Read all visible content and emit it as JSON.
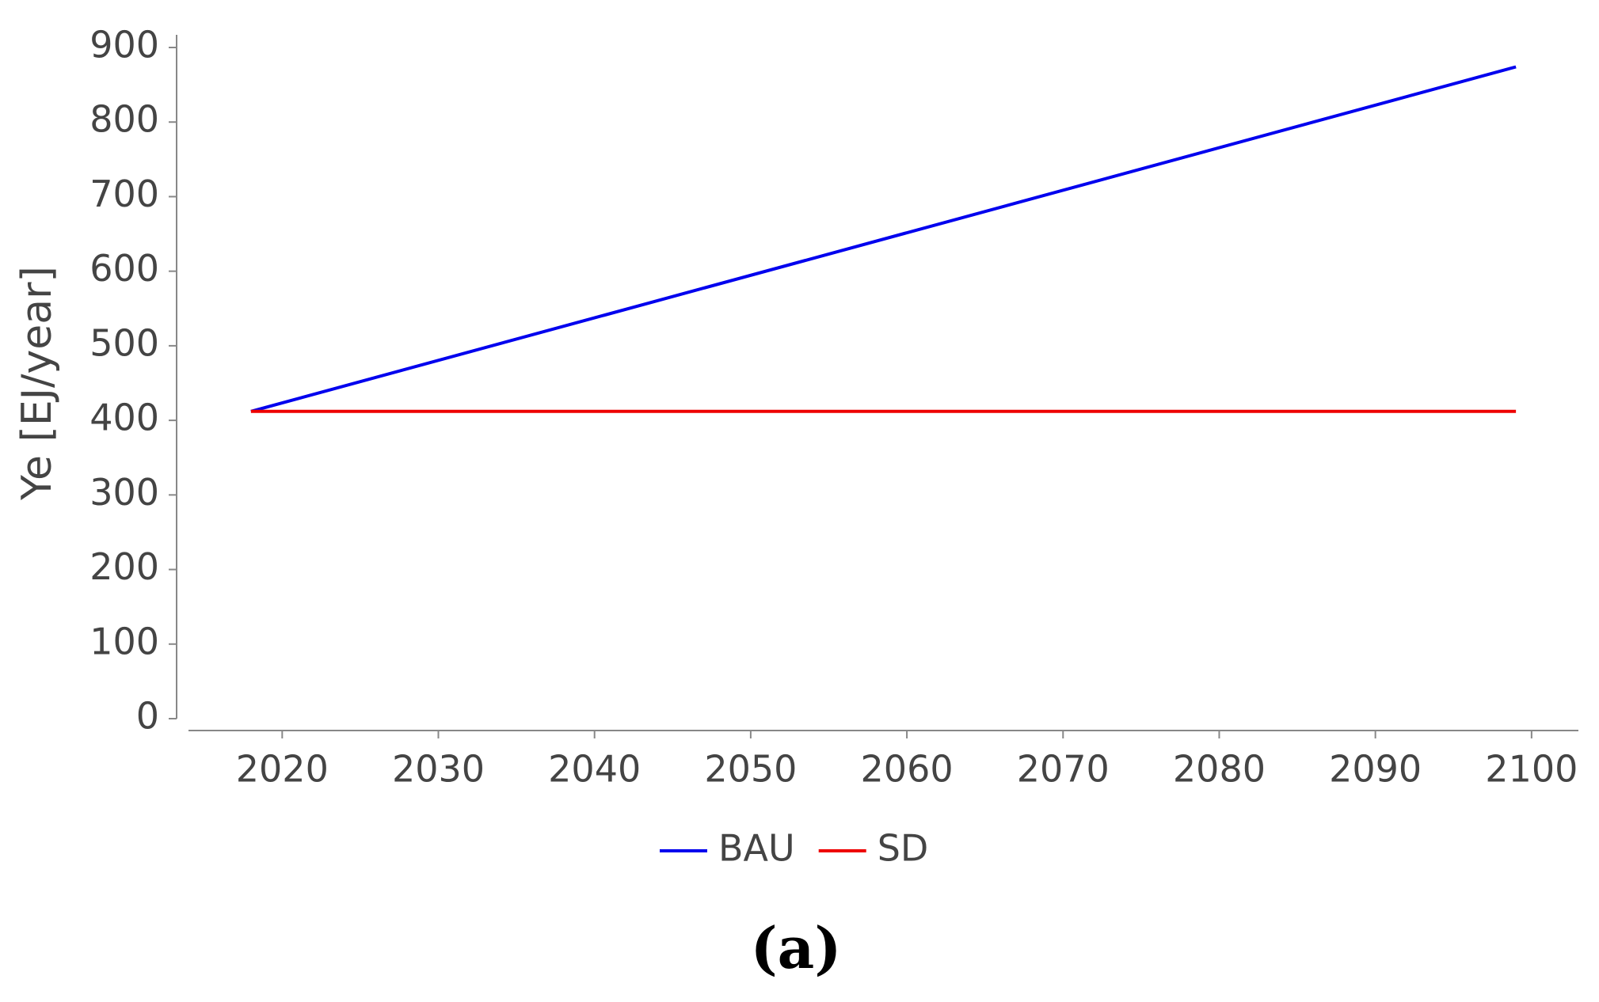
{
  "chart_data": {
    "type": "line",
    "y_label": "Ye [EJ/year]",
    "caption": "(a)",
    "x": [
      2018,
      2099
    ],
    "series": [
      {
        "name": "BAU",
        "color": "#0000ee",
        "values": [
          412,
          874
        ]
      },
      {
        "name": "SD",
        "color": "#ee0000",
        "values": [
          412,
          412
        ]
      }
    ],
    "xlim": [
      2014,
      2103
    ],
    "xticks": [
      2020,
      2030,
      2040,
      2050,
      2060,
      2070,
      2080,
      2090,
      2100
    ],
    "ylim": [
      0,
      900
    ],
    "yticks": [
      0,
      100,
      200,
      300,
      400,
      500,
      600,
      700,
      800,
      900
    ],
    "grid": false,
    "legend": "bottom"
  }
}
